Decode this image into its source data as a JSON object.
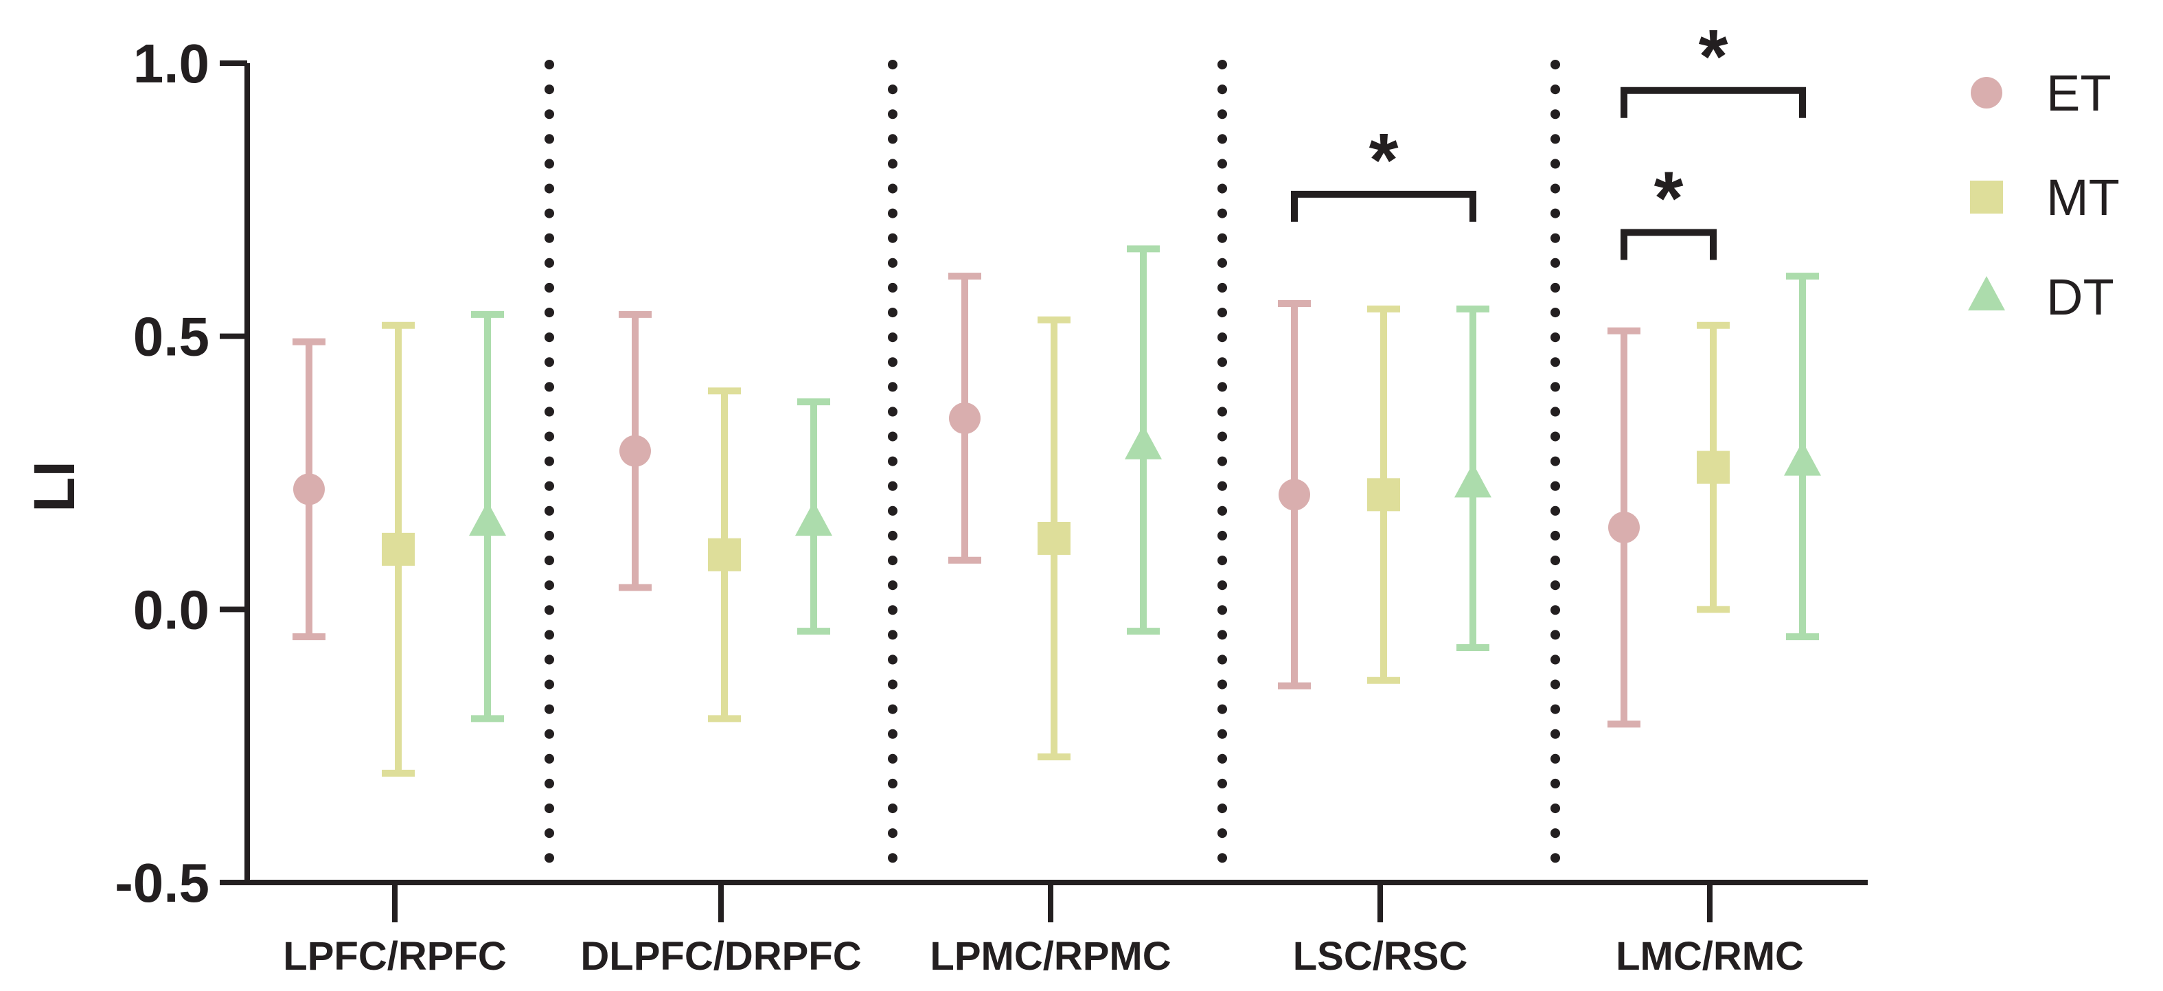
{
  "chart_data": {
    "type": "scatter",
    "title": "",
    "xlabel": "",
    "ylabel": "LI",
    "ylim": [
      -0.5,
      1.0
    ],
    "yticks": [
      "-0.5",
      "0.0",
      "0.5",
      "1.0"
    ],
    "categories": [
      "LPFC/RPFC",
      "DLPFC/DRPFC",
      "LPMC/RPMC",
      "LSC/RSC",
      "LMC/RMC"
    ],
    "series": [
      {
        "name": "ET",
        "marker": "circle",
        "color": "#d9aeae",
        "values": [
          0.22,
          0.29,
          0.35,
          0.21,
          0.15
        ],
        "lower": [
          -0.05,
          0.04,
          0.09,
          -0.14,
          -0.21
        ],
        "upper": [
          0.49,
          0.54,
          0.61,
          0.56,
          0.51
        ]
      },
      {
        "name": "MT",
        "marker": "square",
        "color": "#dede9a",
        "values": [
          0.11,
          0.1,
          0.13,
          0.21,
          0.26
        ],
        "lower": [
          -0.3,
          -0.2,
          -0.27,
          -0.13,
          0.0
        ],
        "upper": [
          0.52,
          0.4,
          0.53,
          0.55,
          0.52
        ]
      },
      {
        "name": "DT",
        "marker": "triangle",
        "color": "#acdcac",
        "values": [
          0.16,
          0.16,
          0.3,
          0.23,
          0.27
        ],
        "lower": [
          -0.2,
          -0.04,
          -0.04,
          -0.07,
          -0.05
        ],
        "upper": [
          0.54,
          0.38,
          0.66,
          0.55,
          0.61
        ]
      }
    ],
    "significance": [
      {
        "category": "LSC/RSC",
        "from": "ET",
        "to": "DT",
        "y": 0.76,
        "label": "*"
      },
      {
        "category": "LMC/RMC",
        "from": "ET",
        "to": "MT",
        "y": 0.69,
        "label": "*"
      },
      {
        "category": "LMC/RMC",
        "from": "ET",
        "to": "DT",
        "y": 0.95,
        "label": "*"
      }
    ],
    "legend_position": "top-right",
    "grid": false
  }
}
